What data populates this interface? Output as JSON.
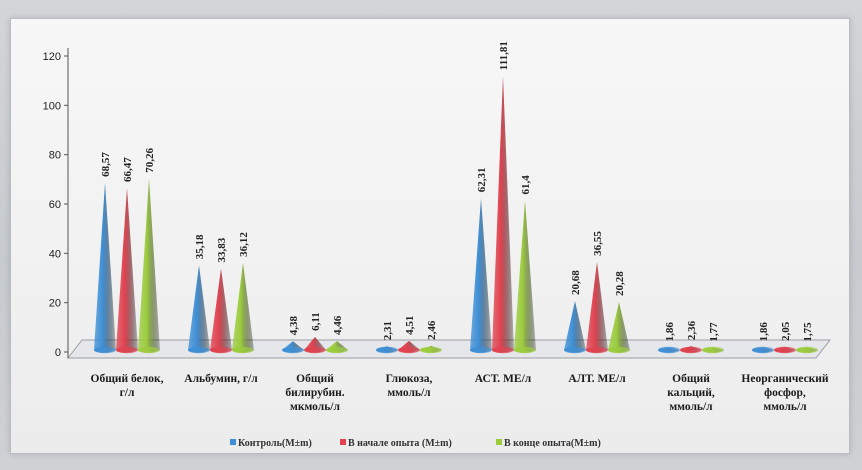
{
  "chart_data": {
    "type": "bar",
    "categories": [
      [
        "Общий белок,",
        "г/л"
      ],
      [
        "Альбумин, г/л"
      ],
      [
        "Общий",
        "билирубин.",
        "мкмоль/л"
      ],
      [
        "Глюкоза,",
        "ммоль/л"
      ],
      [
        "АСТ. МЕ/л"
      ],
      [
        "АЛТ. МЕ/л"
      ],
      [
        "Общий",
        "кальций,",
        "ммоль/л"
      ],
      [
        "Неорганический",
        "фосфор,",
        "ммоль/л"
      ]
    ],
    "series": [
      {
        "name": "Контроль(M±m)",
        "color": "#3f8fd6",
        "values": [
          68.57,
          35.18,
          4.38,
          2.31,
          62.31,
          20.68,
          1.86,
          1.86
        ],
        "labels": [
          "68,57",
          "35,18",
          "4,38",
          "2,31",
          "62,31",
          "20,68",
          "1,86",
          "1,86"
        ]
      },
      {
        "name": "В начале опыта (M±m)",
        "color": "#e0424f",
        "values": [
          66.47,
          33.83,
          6.11,
          4.51,
          111.81,
          36.55,
          2.36,
          2.05
        ],
        "labels": [
          "66,47",
          "33,83",
          "6,11",
          "4,51",
          "111,81",
          "36,55",
          "2,36",
          "2,05"
        ]
      },
      {
        "name": "В конце опыта(M±m)",
        "color": "#9ccc3e",
        "values": [
          70.26,
          36.12,
          4.46,
          2.46,
          61.4,
          20.28,
          1.77,
          1.75
        ],
        "labels": [
          "70,26",
          "36,12",
          "4,46",
          "2,46",
          "61,4",
          "20,28",
          "1,77",
          "1,75"
        ]
      }
    ],
    "yticks": [
      0,
      20,
      40,
      60,
      80,
      100,
      120
    ],
    "ylim": [
      0,
      120
    ],
    "grid": false,
    "legend_position": "bottom"
  }
}
